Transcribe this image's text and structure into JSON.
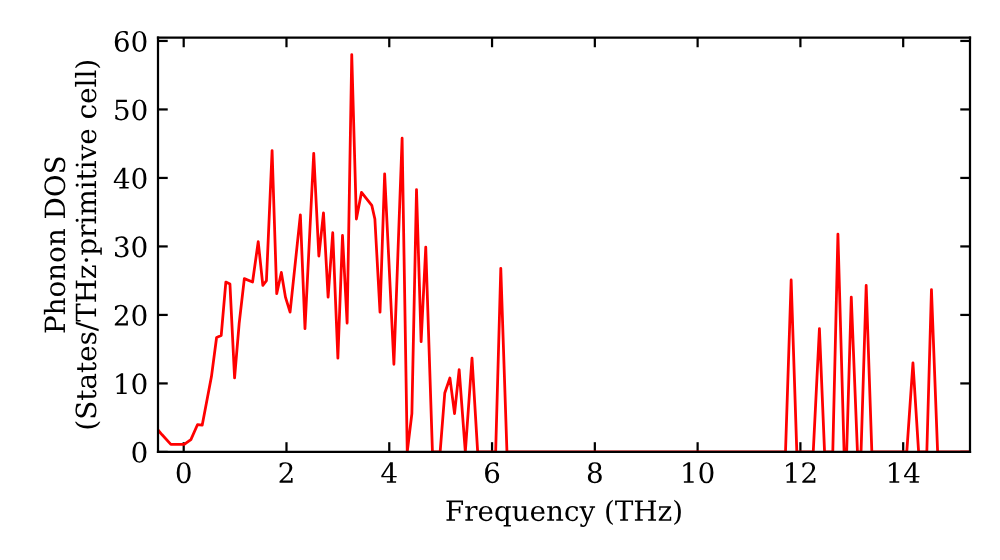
{
  "chart_data": {
    "type": "line",
    "xlabel": "Frequency (THz)",
    "ylabel": "Phonon DOS\n(States/THz·primitive cell)",
    "xlim": [
      -0.5,
      15.3
    ],
    "ylim": [
      0,
      60.5
    ],
    "xticks": [
      0,
      2,
      4,
      6,
      8,
      10,
      12,
      14
    ],
    "yticks": [
      0,
      10,
      20,
      30,
      40,
      50,
      60
    ],
    "grid": false,
    "series": [
      {
        "color": "#ff0000",
        "x": [
          -0.5,
          -0.42,
          -0.25,
          0.01,
          0.14,
          0.27,
          0.36,
          0.54,
          0.64,
          0.73,
          0.82,
          0.9,
          0.99,
          1.08,
          1.18,
          1.34,
          1.45,
          1.54,
          1.61,
          1.72,
          1.81,
          1.9,
          1.98,
          2.07,
          2.27,
          2.36,
          2.53,
          2.63,
          2.72,
          2.81,
          2.9,
          3.0,
          3.09,
          3.18,
          3.27,
          3.36,
          3.46,
          3.66,
          3.72,
          3.82,
          3.91,
          4.09,
          4.25,
          4.35,
          4.44,
          4.53,
          4.62,
          4.71,
          4.84,
          4.99,
          5.08,
          5.18,
          5.27,
          5.36,
          5.48,
          5.61,
          5.72,
          6.07,
          6.17,
          6.29,
          11.71,
          11.82,
          11.93,
          12.25,
          12.37,
          12.47,
          12.63,
          12.73,
          12.85,
          12.9,
          12.99,
          13.11,
          13.18,
          13.28,
          13.39,
          14.07,
          14.19,
          14.3,
          14.46,
          14.55,
          14.67,
          15.3
        ],
        "values": [
          3.2,
          2.5,
          1.1,
          1.1,
          1.8,
          4.0,
          3.9,
          11,
          16.7,
          17,
          24.8,
          24.5,
          10.8,
          18.8,
          25.3,
          24.8,
          30.7,
          24.3,
          25,
          44,
          23.1,
          26.2,
          22.6,
          20.4,
          34.6,
          18,
          43.6,
          28.6,
          34.9,
          22.6,
          32,
          13.7,
          31.6,
          18.8,
          58,
          34,
          37.9,
          36,
          34,
          20.4,
          40.6,
          12.8,
          45.8,
          0,
          5.6,
          38.3,
          16.1,
          29.9,
          0,
          0,
          8.6,
          10.8,
          5.6,
          12,
          0,
          13.7,
          0,
          0,
          26.8,
          0,
          0,
          25.1,
          0,
          0,
          18,
          0,
          0,
          31.8,
          0,
          0,
          22.6,
          0,
          0,
          24.3,
          0,
          0,
          13,
          0,
          0,
          23.7,
          0,
          0
        ]
      }
    ]
  }
}
